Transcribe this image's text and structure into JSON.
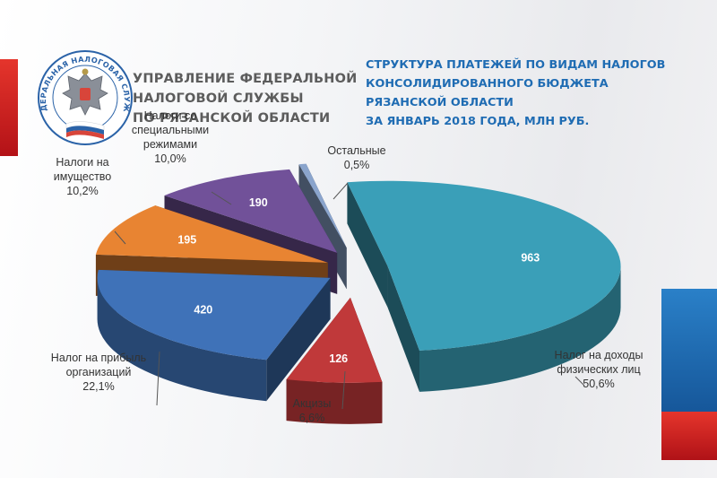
{
  "header": {
    "org_lines": [
      "УПРАВЛЕНИЕ ФЕДЕРАЛЬНОЙ",
      "НАЛОГОВОЙ СЛУЖБЫ",
      "ПО РЯЗАНСКОЙ ОБЛАСТИ"
    ],
    "logo_ring_text": "ФЕДЕРАЛЬНАЯ НАЛОГОВАЯ СЛУЖБА",
    "title_lines": [
      "СТРУКТУРА ПЛАТЕЖЕЙ ПО ВИДАМ НАЛОГОВ",
      "КОНСОЛИДИРОВАННОГО БЮДЖЕТА",
      "РЯЗАНСКОЙ ОБЛАСТИ",
      "ЗА ЯНВАРЬ 2018 ГОДА, МЛН РУБ."
    ]
  },
  "colors": {
    "title": "#1f6cb3",
    "org_text": "#5c5c5c",
    "flag_red": "#d81e1e",
    "flag_blue": "#1f6cb3"
  },
  "logo_icon": "double-headed-eagle-emblem",
  "chart_data": {
    "type": "pie",
    "style": "3d-exploded",
    "slices": [
      {
        "label_lines": [
          "Налог на доходы",
          "физических лиц"
        ],
        "value": 963,
        "value_text": "963",
        "pct_text": "50,6%",
        "percent": 50.6,
        "color": "#3a9fb8"
      },
      {
        "label_lines": [
          "Акцизы"
        ],
        "value": 126,
        "value_text": "126",
        "pct_text": "6,6%",
        "percent": 6.6,
        "color": "#c0393a"
      },
      {
        "label_lines": [
          "Налог на прибыль",
          "организаций"
        ],
        "value": 420,
        "value_text": "420",
        "pct_text": "22,1%",
        "percent": 22.1,
        "color": "#3f72b8"
      },
      {
        "label_lines": [
          "Налоги на",
          "имущество"
        ],
        "value": 195,
        "value_text": "195",
        "pct_text": "10,2%",
        "percent": 10.2,
        "color": "#e88432"
      },
      {
        "label_lines": [
          "Налоги со",
          "специальными",
          "режимами"
        ],
        "value": 190,
        "value_text": "190",
        "pct_text": "10,0%",
        "percent": 10.0,
        "color": "#715199"
      },
      {
        "label_lines": [
          "Остальные"
        ],
        "value": null,
        "value_text": "",
        "pct_text": "0,5%",
        "percent": 0.5,
        "color": "#8aa4cc"
      }
    ]
  }
}
